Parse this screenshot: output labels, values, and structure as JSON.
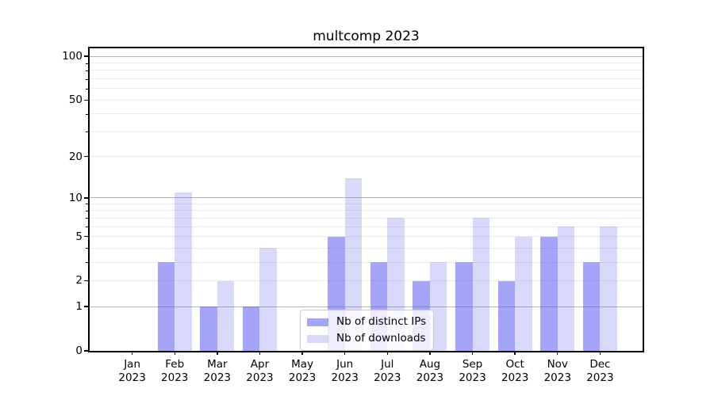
{
  "chart_data": {
    "type": "bar",
    "title": "multcomp 2023",
    "categories": [
      "Jan 2023",
      "Feb 2023",
      "Mar 2023",
      "Apr 2023",
      "May 2023",
      "Jun 2023",
      "Jul 2023",
      "Aug 2023",
      "Sep 2023",
      "Oct 2023",
      "Nov 2023",
      "Dec 2023"
    ],
    "months": [
      "Jan",
      "Feb",
      "Mar",
      "Apr",
      "May",
      "Jun",
      "Jul",
      "Aug",
      "Sep",
      "Oct",
      "Nov",
      "Dec"
    ],
    "year": "2023",
    "series": [
      {
        "name": "Nb of distinct IPs",
        "color": "rgba(80,80,242,0.52)",
        "values": [
          0,
          3,
          1,
          1,
          0,
          5,
          3,
          2,
          3,
          2,
          5,
          3
        ]
      },
      {
        "name": "Nb of downloads",
        "color": "rgba(80,80,242,0.22)",
        "values": [
          0,
          11,
          2,
          4,
          0,
          14,
          7,
          3,
          7,
          5,
          6,
          6
        ]
      }
    ],
    "y_axis": {
      "scale": "log1p",
      "tick_labels": [
        0,
        1,
        2,
        5,
        10,
        20,
        50,
        100
      ],
      "top_value": 113.6,
      "major_gridlines": [
        1,
        10,
        100
      ],
      "minor_gridlines": [
        2,
        3,
        4,
        5,
        6,
        7,
        8,
        9,
        20,
        30,
        40,
        50,
        60,
        70,
        80,
        90
      ],
      "ylim": [
        0,
        113.6
      ]
    },
    "legend_position": "lower center",
    "grid": true
  }
}
